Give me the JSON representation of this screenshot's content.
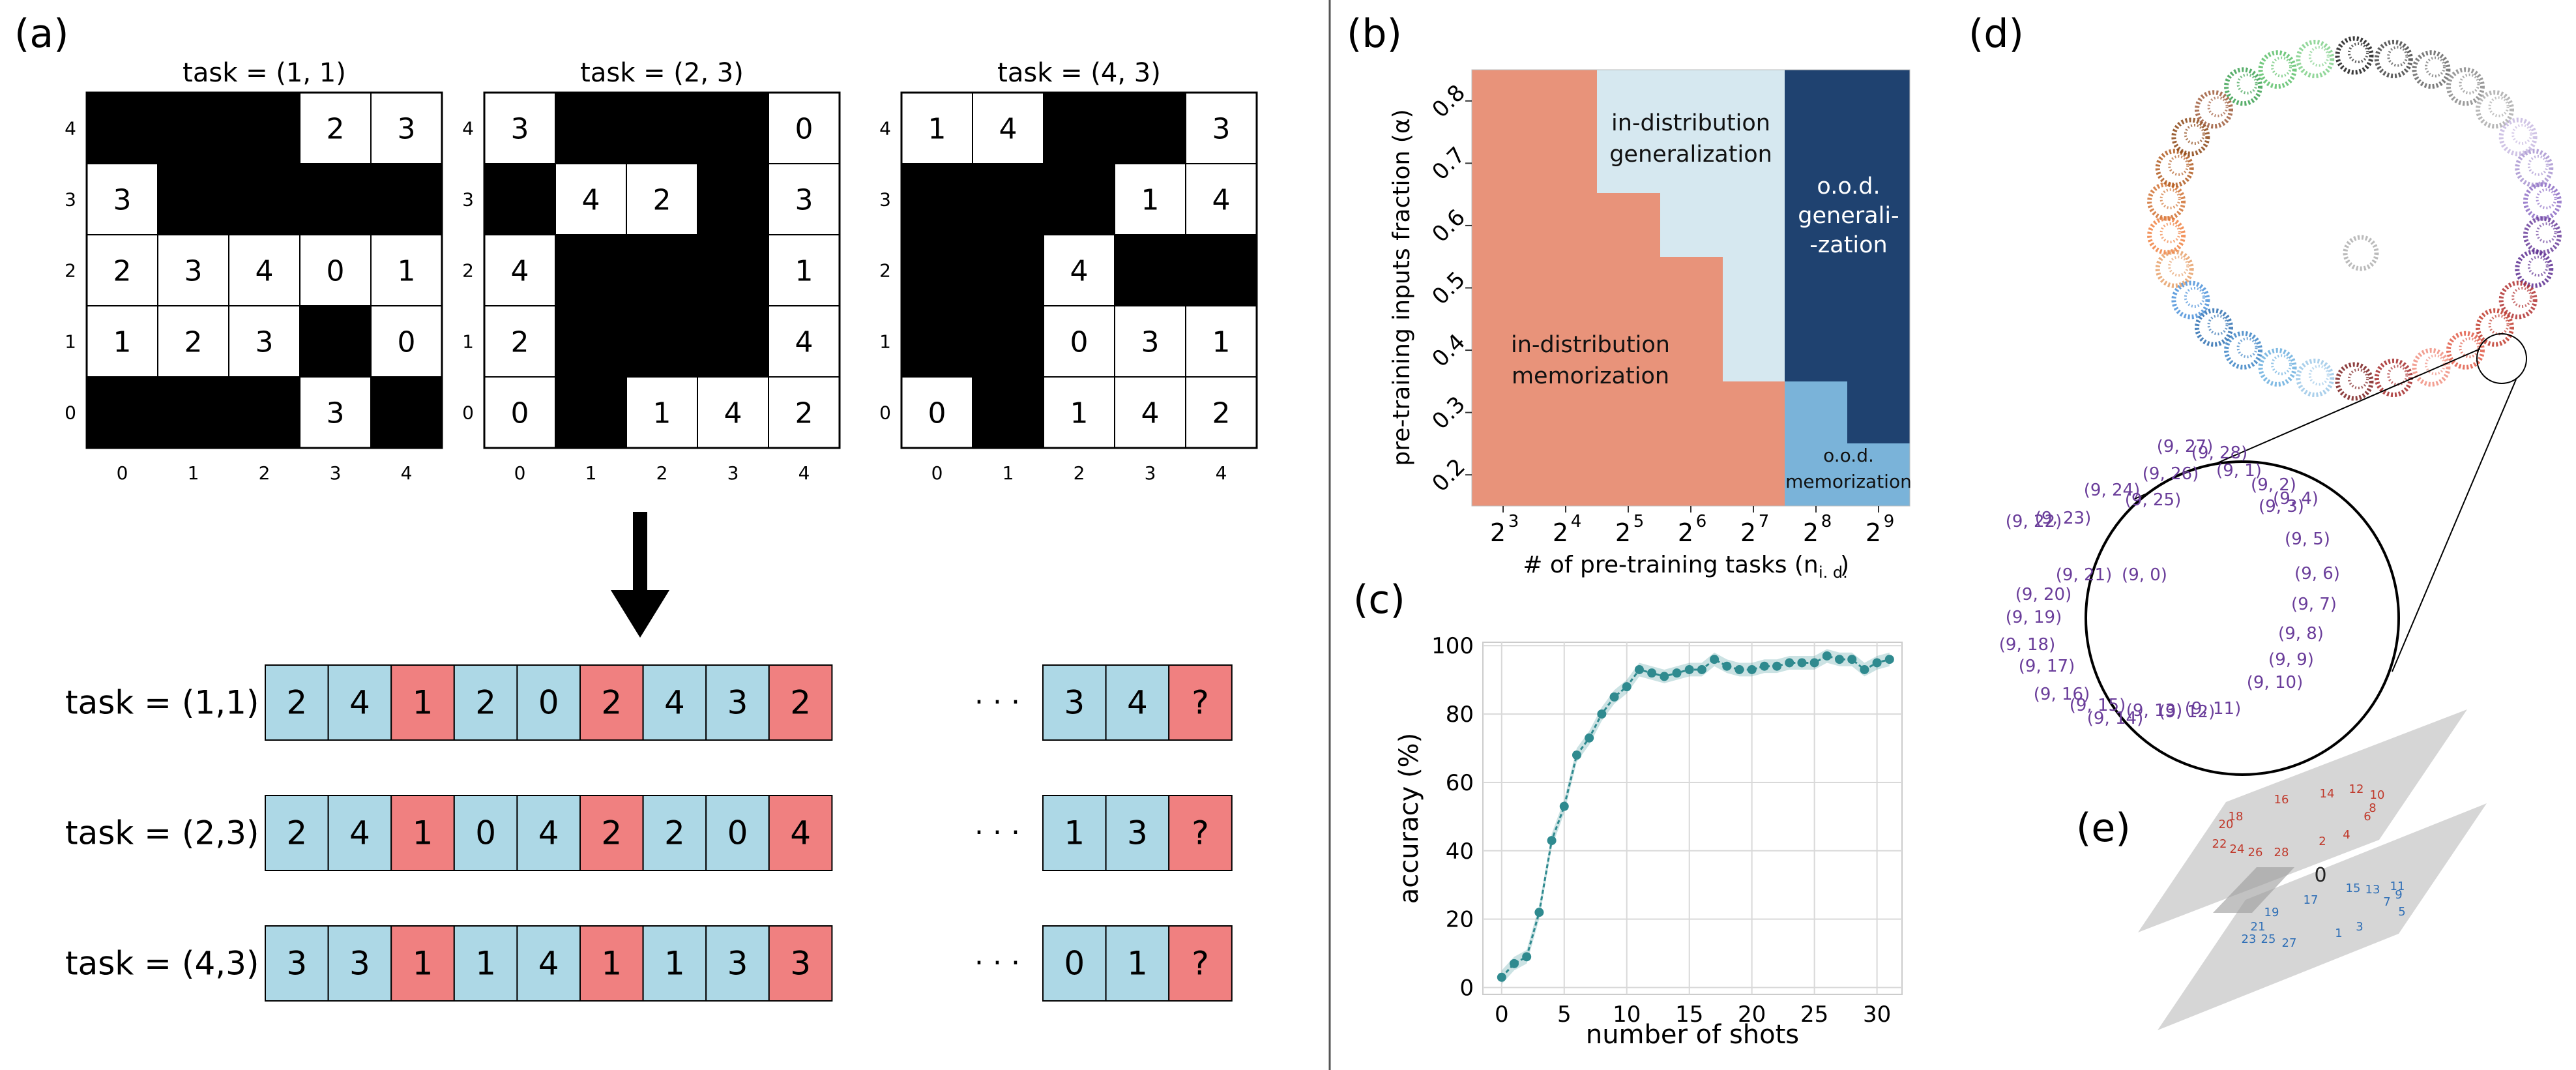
{
  "panel_labels": {
    "a": "(a)",
    "b": "(b)",
    "c": "(c)",
    "d": "(d)",
    "e": "(e)"
  },
  "panel_a": {
    "grid_titles": [
      "task  = (1, 1)",
      "task  = (2, 3)",
      "task  = (4, 3)"
    ],
    "tick_labels": [
      "0",
      "1",
      "2",
      "3",
      "4"
    ],
    "grids": [
      {
        "rows": [
          [
            "B",
            "B",
            "B",
            "2",
            "3"
          ],
          [
            "3",
            "B",
            "B",
            "B",
            "B"
          ],
          [
            "2",
            "3",
            "4",
            "0",
            "1"
          ],
          [
            "1",
            "2",
            "3",
            "B",
            "0"
          ],
          [
            "B",
            "B",
            "B",
            "3",
            "B"
          ]
        ]
      },
      {
        "rows": [
          [
            "3",
            "B",
            "B",
            "B",
            "0"
          ],
          [
            "B",
            "4",
            "2",
            "B",
            "3"
          ],
          [
            "4",
            "B",
            "B",
            "B",
            "1"
          ],
          [
            "2",
            "B",
            "B",
            "B",
            "4"
          ],
          [
            "0",
            "B",
            "1",
            "4",
            "2"
          ]
        ]
      },
      {
        "rows": [
          [
            "1",
            "4",
            "B",
            "B",
            "3"
          ],
          [
            "B",
            "B",
            "B",
            "1",
            "4"
          ],
          [
            "B",
            "B",
            "4",
            "B",
            "B"
          ],
          [
            "B",
            "B",
            "0",
            "3",
            "1"
          ],
          [
            "0",
            "B",
            "1",
            "4",
            "2"
          ]
        ]
      }
    ],
    "sequences": [
      {
        "label": "task = (1,1)",
        "cells": [
          "2",
          "4",
          "1",
          "2",
          "0",
          "2",
          "4",
          "3",
          "2"
        ],
        "tail": [
          "3",
          "4",
          "?"
        ]
      },
      {
        "label": "task = (2,3)",
        "cells": [
          "2",
          "4",
          "1",
          "0",
          "4",
          "2",
          "2",
          "0",
          "4"
        ],
        "tail": [
          "1",
          "3",
          "?"
        ]
      },
      {
        "label": "task = (4,3)",
        "cells": [
          "3",
          "3",
          "1",
          "1",
          "4",
          "1",
          "1",
          "3",
          "3"
        ],
        "tail": [
          "0",
          "1",
          "?"
        ]
      }
    ],
    "ellipsis": "· · ·",
    "colors": {
      "input": "#add8e6",
      "output": "#f08080",
      "black": "#000000"
    }
  },
  "panel_b": {
    "ylabel": "pre-training inputs fraction (α)",
    "xlabel": "# of pre-training tasks (n",
    "xlabel_sub": "i. d.",
    "xlabel_close": ")",
    "y_ticks": [
      "0.2",
      "0.3",
      "0.4",
      "0.5",
      "0.6",
      "0.7",
      "0.8"
    ],
    "x_ticks": [
      "2",
      "2",
      "2",
      "2",
      "2",
      "2",
      "2"
    ],
    "x_tick_exps": [
      "3",
      "4",
      "5",
      "6",
      "7",
      "8",
      "9"
    ],
    "regions": {
      "id_gen": [
        "in-distribution",
        "generalization"
      ],
      "id_mem": [
        "in-distribution",
        "memorization"
      ],
      "ood_gen": [
        "o.o.d.",
        "generali-",
        "-zation"
      ],
      "ood_mem": [
        "o.o.d.",
        "memorization"
      ]
    },
    "colors": {
      "id_mem": "#e8937a",
      "id_gen": "#d6e8f0",
      "ood_gen": "#1f4270",
      "ood_mem": "#7ab3d9"
    }
  },
  "panel_c": {
    "ylabel": "accuracy (%)",
    "xlabel": "number of shots",
    "x_ticks": [
      "0",
      "5",
      "10",
      "15",
      "20",
      "25",
      "30"
    ],
    "y_ticks": [
      "0",
      "20",
      "40",
      "60",
      "80",
      "100"
    ],
    "color": "#2f8a8f"
  },
  "chart_data": {
    "type": "line",
    "xlabel": "number of shots",
    "ylabel": "accuracy (%)",
    "xlim": [
      -1.5,
      32
    ],
    "ylim": [
      -2,
      101
    ],
    "grid": true,
    "x": [
      0,
      1,
      2,
      3,
      4,
      5,
      6,
      7,
      8,
      9,
      10,
      11,
      12,
      13,
      14,
      15,
      16,
      17,
      18,
      19,
      20,
      21,
      22,
      23,
      24,
      25,
      26,
      27,
      28,
      29,
      30,
      31
    ],
    "series": [
      {
        "values": [
          3,
          7,
          9,
          22,
          43,
          53,
          68,
          73,
          80,
          85,
          88,
          93,
          92,
          91,
          92,
          93,
          93,
          96,
          94,
          93,
          93,
          94,
          94,
          95,
          95,
          95,
          97,
          96,
          96,
          93,
          95,
          96
        ]
      }
    ]
  },
  "panel_d": {
    "zoom_labels": [
      "(9, 27)",
      "(9, 28)",
      "(9, 26)",
      "(9, 1)",
      "(9, 24)",
      "(9, 25)",
      "(9, 2)",
      "(9, 23)",
      "(9, 4)",
      "(9, 22)",
      "(9, 3)",
      "(9, 5)",
      "(9, 21)",
      "(9, 0)",
      "(9, 6)",
      "(9, 20)",
      "(9, 7)",
      "(9, 19)",
      "(9, 8)",
      "(9, 18)",
      "(9, 9)",
      "(9, 17)",
      "(9, 10)",
      "(9, 16)",
      "(9, 15)",
      "(9, 14)",
      "(9, 13)",
      "(9, 12)",
      "(9, 11)"
    ],
    "label_color": "#6a3d9a"
  },
  "panel_e": {
    "top_labels": [
      "20",
      "18",
      "16",
      "14",
      "12",
      "10",
      "8",
      "6",
      "22",
      "24",
      "26",
      "28",
      "2",
      "4"
    ],
    "bottom_labels": [
      "0",
      "15",
      "13",
      "11",
      "9",
      "19",
      "17",
      "5",
      "21",
      "3",
      "23",
      "25",
      "27",
      "1",
      "7"
    ],
    "center": "0",
    "top_color": "#c0392b",
    "bottom_color": "#2f6fb6"
  }
}
